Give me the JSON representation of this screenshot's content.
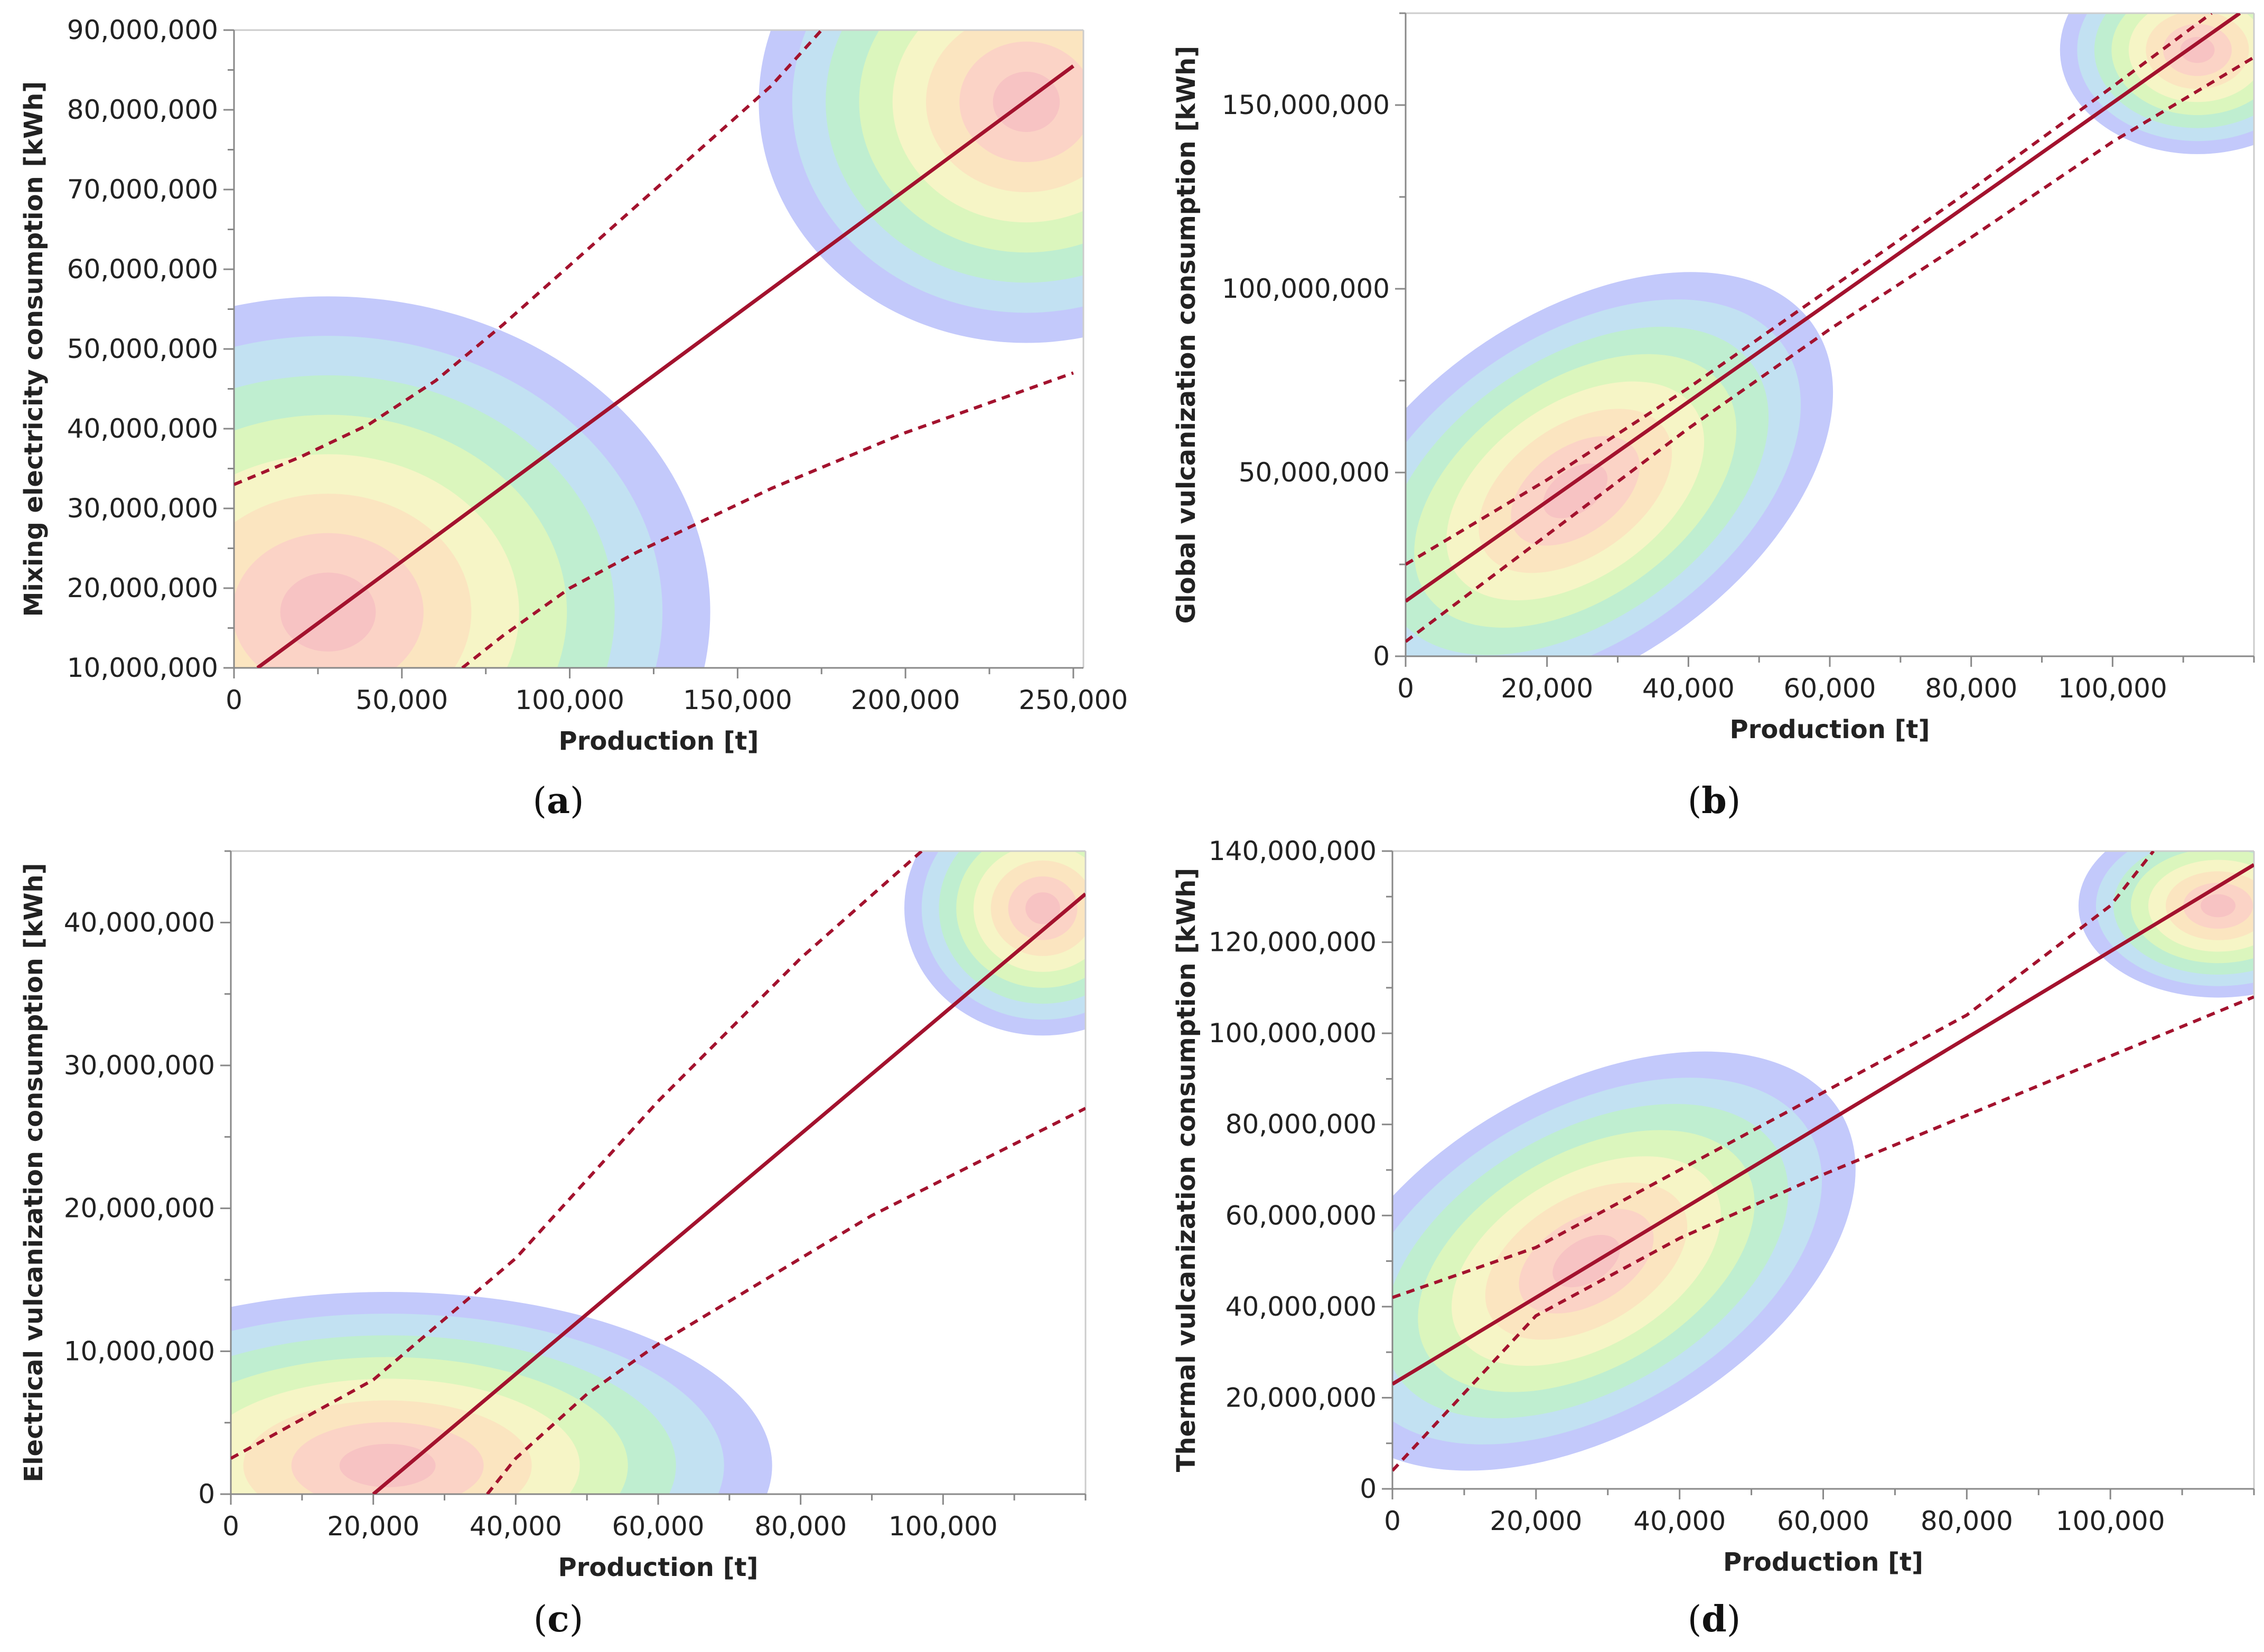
{
  "figure": {
    "colors": {
      "fit_line": "#a3122e",
      "confidence_band": "#a3122e",
      "density_levels": [
        "#c3c9fb",
        "#c2e1f2",
        "#bfeed0",
        "#dbf6bd",
        "#f6f5c6",
        "#fbe5c0",
        "#fbd3c6",
        "#f7c3c3"
      ]
    },
    "panels": [
      {
        "id": "a",
        "caption": "a",
        "xlabel": "Production [t]",
        "ylabel": "Mixing electricity consumption [kWh]",
        "xlim": [
          0,
          253000
        ],
        "ylim": [
          10000000,
          90000000
        ],
        "xticks": [
          0,
          50000,
          100000,
          150000,
          200000,
          250000
        ],
        "xtick_labels": [
          "0",
          "50,000",
          "100,000",
          "150,000",
          "200,000",
          "250,000"
        ],
        "yticks": [
          10000000,
          20000000,
          30000000,
          40000000,
          50000000,
          60000000,
          70000000,
          80000000,
          90000000
        ],
        "ytick_labels": [
          "10,000,000",
          "20,000,000",
          "30,000,000",
          "40,000,000",
          "50,000,000",
          "60,000,000",
          "70,000,000",
          "80,000,000",
          "90,000,000"
        ],
        "ytick_visible_max": 90000000,
        "grid": false
      },
      {
        "id": "b",
        "caption": "b",
        "xlabel": "Production [t]",
        "ylabel": "Global vulcanization consumption [kWh]",
        "xlim": [
          0,
          120000
        ],
        "ylim": [
          0,
          175000000
        ],
        "xticks": [
          0,
          20000,
          40000,
          60000,
          80000,
          100000
        ],
        "xtick_labels": [
          "0",
          "20,000",
          "40,000",
          "60,000",
          "80,000",
          "100,000"
        ],
        "yticks": [
          0,
          50000000,
          100000000,
          150000000
        ],
        "ytick_labels": [
          "0",
          "50,000,000",
          "100,000,000",
          "150,000,000"
        ],
        "grid": false
      },
      {
        "id": "c",
        "caption": "c",
        "xlabel": "Production [t]",
        "ylabel": "Electrical vulcanization consumption [kWh]",
        "xlim": [
          0,
          120000
        ],
        "ylim": [
          0,
          45000000
        ],
        "xticks": [
          0,
          20000,
          40000,
          60000,
          80000,
          100000
        ],
        "xtick_labels": [
          "0",
          "20,000",
          "40,000",
          "60,000",
          "80,000",
          "100,000"
        ],
        "yticks": [
          0,
          10000000,
          20000000,
          30000000,
          40000000
        ],
        "ytick_labels": [
          "0",
          "10,000,000",
          "20,000,000",
          "30,000,000",
          "40,000,000"
        ],
        "grid": false
      },
      {
        "id": "d",
        "caption": "d",
        "xlabel": "Production [t]",
        "ylabel": "Thermal vulcanization consumption [kWh]",
        "xlim": [
          0,
          120000
        ],
        "ylim": [
          0,
          140000000
        ],
        "xticks": [
          0,
          20000,
          40000,
          60000,
          80000,
          100000
        ],
        "xtick_labels": [
          "0",
          "20,000",
          "40,000",
          "60,000",
          "80,000",
          "100,000"
        ],
        "yticks": [
          0,
          20000000,
          40000000,
          60000000,
          80000000,
          100000000,
          120000000,
          140000000
        ],
        "ytick_labels": [
          "0",
          "20,000,000",
          "40,000,000",
          "60,000,000",
          "80,000,000",
          "100,000,000",
          "120,000,000",
          "140,000,000"
        ],
        "grid": false
      }
    ]
  },
  "chart_data": [
    {
      "type": "line",
      "panel": "a",
      "xlabel": "Production [t]",
      "ylabel": "Mixing electricity consumption [kWh]",
      "xlim": [
        0,
        253000
      ],
      "ylim": [
        10000000,
        90000000
      ],
      "series": [
        {
          "style": "solid",
          "x": [
            7000,
            250000
          ],
          "y": [
            10000000,
            85500000
          ]
        },
        {
          "style": "dashed",
          "x": [
            0,
            20000,
            40000,
            60000,
            80000,
            100000,
            120000,
            140000,
            160000,
            175000
          ],
          "y": [
            33000000,
            36500000,
            40500000,
            46000000,
            53000000,
            60500000,
            68000000,
            75500000,
            83000000,
            90000000
          ]
        },
        {
          "style": "dashed",
          "x": [
            68000,
            80000,
            100000,
            120000,
            140000,
            160000,
            180000,
            200000,
            220000,
            250000
          ],
          "y": [
            10000000,
            14000000,
            20000000,
            24500000,
            28500000,
            32500000,
            36000000,
            39500000,
            42500000,
            47000000
          ]
        }
      ],
      "density_clusters": [
        {
          "center_x": 28000,
          "center_y": 17000000
        },
        {
          "center_x": 236000,
          "center_y": 81000000
        }
      ]
    },
    {
      "type": "line",
      "panel": "b",
      "xlabel": "Production [t]",
      "ylabel": "Global vulcanization consumption [kWh]",
      "xlim": [
        0,
        120000
      ],
      "ylim": [
        0,
        175000000
      ],
      "series": [
        {
          "style": "solid",
          "x": [
            0,
            118000
          ],
          "y": [
            15000000,
            175000000
          ]
        },
        {
          "style": "dashed",
          "x": [
            0,
            20000,
            40000,
            60000,
            80000,
            100000,
            114000
          ],
          "y": [
            25000000,
            48000000,
            73000000,
            100000000,
            127000000,
            155000000,
            175000000
          ]
        },
        {
          "style": "dashed",
          "x": [
            0,
            20000,
            40000,
            60000,
            80000,
            100000,
            120000
          ],
          "y": [
            4000000,
            33000000,
            62000000,
            89000000,
            114000000,
            140000000,
            163000000
          ]
        }
      ],
      "density_clusters": [
        {
          "center_x": 24000,
          "center_y": 45000000
        },
        {
          "center_x": 112000,
          "center_y": 165000000
        }
      ]
    },
    {
      "type": "line",
      "panel": "c",
      "xlabel": "Production [t]",
      "ylabel": "Electrical vulcanization consumption [kWh]",
      "xlim": [
        0,
        120000
      ],
      "ylim": [
        0,
        45000000
      ],
      "series": [
        {
          "style": "solid",
          "x": [
            20000,
            120000
          ],
          "y": [
            0,
            42000000
          ]
        },
        {
          "style": "dashed",
          "x": [
            0,
            20000,
            40000,
            60000,
            80000,
            97000
          ],
          "y": [
            2500000,
            8000000,
            16500000,
            27500000,
            37500000,
            45000000
          ]
        },
        {
          "style": "dashed",
          "x": [
            36000,
            40000,
            50000,
            60000,
            70000,
            80000,
            90000,
            100000,
            110000,
            120000
          ],
          "y": [
            0,
            2500000,
            7000000,
            10500000,
            13500000,
            16500000,
            19500000,
            22000000,
            24500000,
            27000000
          ]
        }
      ],
      "density_clusters": [
        {
          "center_x": 22000,
          "center_y": 2000000
        },
        {
          "center_x": 114000,
          "center_y": 41000000
        }
      ]
    },
    {
      "type": "line",
      "panel": "d",
      "xlabel": "Production [t]",
      "ylabel": "Thermal vulcanization consumption [kWh]",
      "xlim": [
        0,
        120000
      ],
      "ylim": [
        0,
        140000000
      ],
      "series": [
        {
          "style": "solid",
          "x": [
            0,
            120000
          ],
          "y": [
            23000000,
            137000000
          ]
        },
        {
          "style": "dashed",
          "x": [
            0,
            20000,
            40000,
            60000,
            80000,
            100000,
            106000
          ],
          "y": [
            42000000,
            53000000,
            70000000,
            87000000,
            104000000,
            128000000,
            140000000
          ]
        },
        {
          "style": "dashed",
          "x": [
            0,
            20000,
            40000,
            60000,
            80000,
            100000,
            120000
          ],
          "y": [
            4000000,
            38000000,
            55000000,
            69000000,
            82000000,
            95000000,
            108000000
          ]
        }
      ],
      "density_clusters": [
        {
          "center_x": 27000,
          "center_y": 50000000
        },
        {
          "center_x": 115000,
          "center_y": 128000000
        }
      ]
    }
  ]
}
